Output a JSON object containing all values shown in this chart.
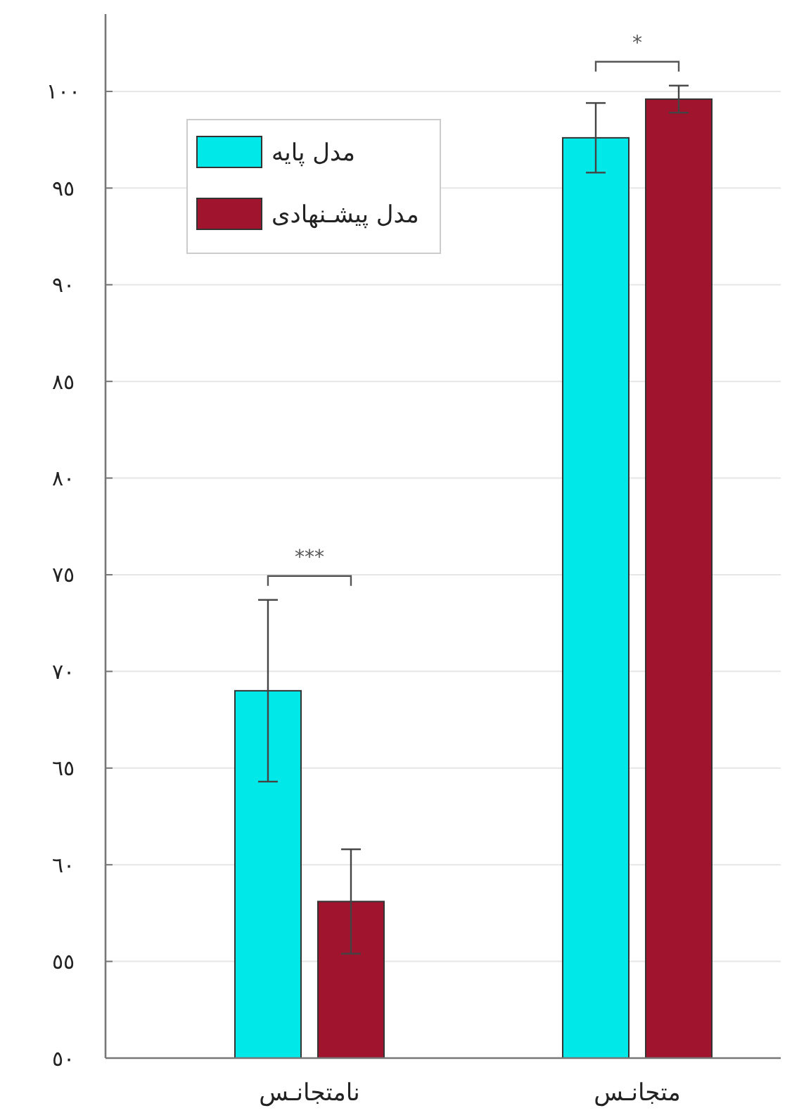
{
  "chart_data": {
    "type": "bar",
    "categories": [
      "نامتجانـس",
      "متجانـس"
    ],
    "series": [
      {
        "name": "مدل پایه",
        "color": "#00e8e8",
        "values": [
          69.0,
          97.6
        ],
        "errors": [
          4.7,
          1.8
        ]
      },
      {
        "name": "مدل پیشـنهادی",
        "color": "#a0142e",
        "values": [
          58.1,
          99.6
        ],
        "errors": [
          2.7,
          0.7
        ]
      }
    ],
    "ylim": [
      50,
      104
    ],
    "yticks": [
      {
        "value": 50,
        "label": "٥٠"
      },
      {
        "value": 55,
        "label": "٥٥"
      },
      {
        "value": 60,
        "label": "٦٠"
      },
      {
        "value": 65,
        "label": "٦٥"
      },
      {
        "value": 70,
        "label": "٧٠"
      },
      {
        "value": 75,
        "label": "٧٥"
      },
      {
        "value": 80,
        "label": "٨٠"
      },
      {
        "value": 85,
        "label": "٨٥"
      },
      {
        "value": 90,
        "label": "٩٠"
      },
      {
        "value": 95,
        "label": "٩٥"
      },
      {
        "value": 100,
        "label": "١٠٠"
      }
    ],
    "grid": "y",
    "legend": "top left",
    "annotations": [
      "***",
      "*"
    ]
  }
}
